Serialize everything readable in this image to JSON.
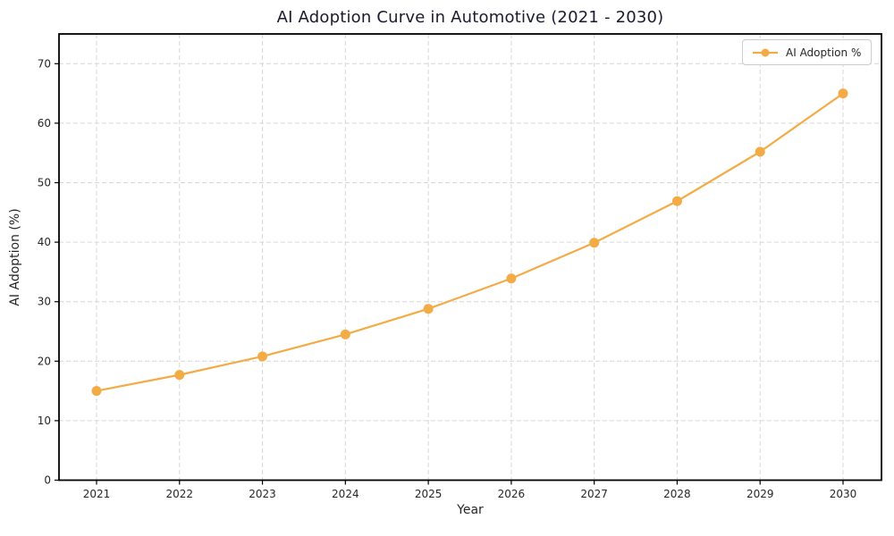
{
  "chart_data": {
    "type": "line",
    "title": "AI Adoption Curve in Automotive (2021 - 2030)",
    "xlabel": "Year",
    "ylabel": "AI Adoption (%)",
    "categories": [
      "2021",
      "2022",
      "2023",
      "2024",
      "2025",
      "2026",
      "2027",
      "2028",
      "2029",
      "2030"
    ],
    "series": [
      {
        "name": "AI Adoption %",
        "values": [
          15.0,
          17.7,
          20.8,
          24.5,
          28.8,
          33.9,
          39.9,
          46.9,
          55.2,
          65.0
        ],
        "color": "#f3ab45",
        "marker": "circle"
      }
    ],
    "ylim": [
      0,
      75
    ],
    "yticks": [
      0,
      10,
      20,
      30,
      40,
      50,
      60,
      70
    ],
    "grid": true,
    "grid_style": "dashed",
    "legend_position": "top-right"
  },
  "legend": {
    "label": "AI Adoption %"
  },
  "colors": {
    "line": "#f3ab45",
    "grid": "#d6d6d6",
    "spine": "#000000",
    "tick_text": "#262626",
    "title_text": "#1a1a2e",
    "legend_border": "#cccccc",
    "background": "#ffffff"
  }
}
